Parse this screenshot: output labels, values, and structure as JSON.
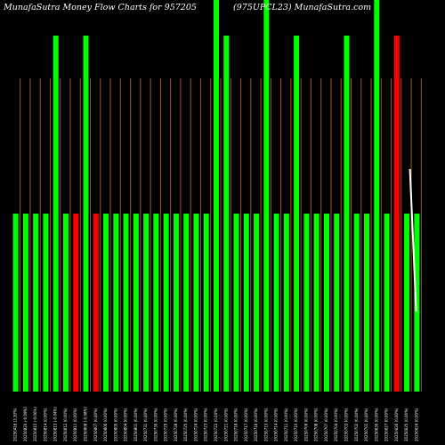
{
  "header": {
    "title_left": "MunafaSutra  Money Flow  Charts for 957205",
    "title_right": "(975UPCL23) MunafaSutra.com"
  },
  "chart_data": {
    "type": "bar",
    "title": "MunafaSutra  Money Flow  Charts for 957205 (975UPCL23) MunafaSutra.com",
    "colors": {
      "up": "#00ff00",
      "down": "#ff0000",
      "volume_line": "#a0522d",
      "price_line": "#ffffff",
      "background": "#000000"
    },
    "categories": [
      "20250416 (3,30%)",
      "20250820 (-0.09%)",
      "20250815 (-0.06%)",
      "20250814 (0.00%)",
      "20250813 (-0.04%)",
      "20250812 (0.00%)",
      "20250811 (0.00%)",
      "20250808 (-0.08%)",
      "20250807 (0.00%)",
      "20250806 (0.00%)",
      "20250805 (0.00%)",
      "20250804 (0.00%)",
      "20250801 (0.00%)",
      "20250731 (0.00%)",
      "20250730 (0.00%)",
      "20250729 (0.00%)",
      "20250728 (0.00%)",
      "20250725 (0.00%)",
      "20250724 (0.00%)",
      "20250723 (0.00%)",
      "20250722 (0.04%)",
      "20250721 (0.00%)",
      "20250718 (0.00%)",
      "20250717 (0.00%)",
      "20250716 (0.00%)",
      "20250715 (0.00%)",
      "20250714 (0.00%)",
      "20250711 (0.00%)",
      "20250710 (0.00%)",
      "20250709 (0.00%)",
      "20250708 (0.00%)",
      "20250707 (0.00%)",
      "20250704 (0.00%)",
      "20250703 (0.00%)",
      "20250702 (0.00%)",
      "20250701 (0.00%)",
      "20250630 (0.00%)",
      "20250627 (0.00%)",
      "20250626 (0.00%)",
      "20250625 (0.00%)",
      "20250624 (0.00%)"
    ],
    "money_flow": [
      1,
      1,
      1,
      1,
      2,
      1,
      1,
      2,
      1,
      1,
      1,
      1,
      1,
      1,
      1,
      1,
      1,
      1,
      1,
      1,
      2.2,
      2,
      1,
      1,
      1,
      2.2,
      1,
      1,
      2,
      1,
      1,
      1,
      1,
      2,
      1,
      1,
      2.2,
      1,
      2,
      1,
      1
    ],
    "direction": [
      "up",
      "up",
      "up",
      "up",
      "up",
      "up",
      "down",
      "up",
      "down",
      "up",
      "up",
      "up",
      "up",
      "up",
      "up",
      "up",
      "up",
      "up",
      "up",
      "up",
      "up",
      "up",
      "up",
      "up",
      "up",
      "up",
      "up",
      "up",
      "up",
      "up",
      "up",
      "up",
      "up",
      "up",
      "up",
      "up",
      "up",
      "up",
      "down",
      "up",
      "up"
    ],
    "volume": [
      1,
      1,
      1,
      1,
      1,
      1,
      1,
      1,
      1,
      1,
      1,
      1,
      1,
      1,
      1,
      1,
      1,
      1,
      1,
      1,
      1,
      1,
      1,
      1,
      1,
      1,
      1,
      1,
      1,
      1,
      1,
      1,
      1,
      1,
      1,
      1,
      1,
      1,
      1,
      1,
      1
    ],
    "price_line": [
      [
        0.98,
        1.25
      ],
      [
        0.995,
        0.45
      ]
    ]
  }
}
